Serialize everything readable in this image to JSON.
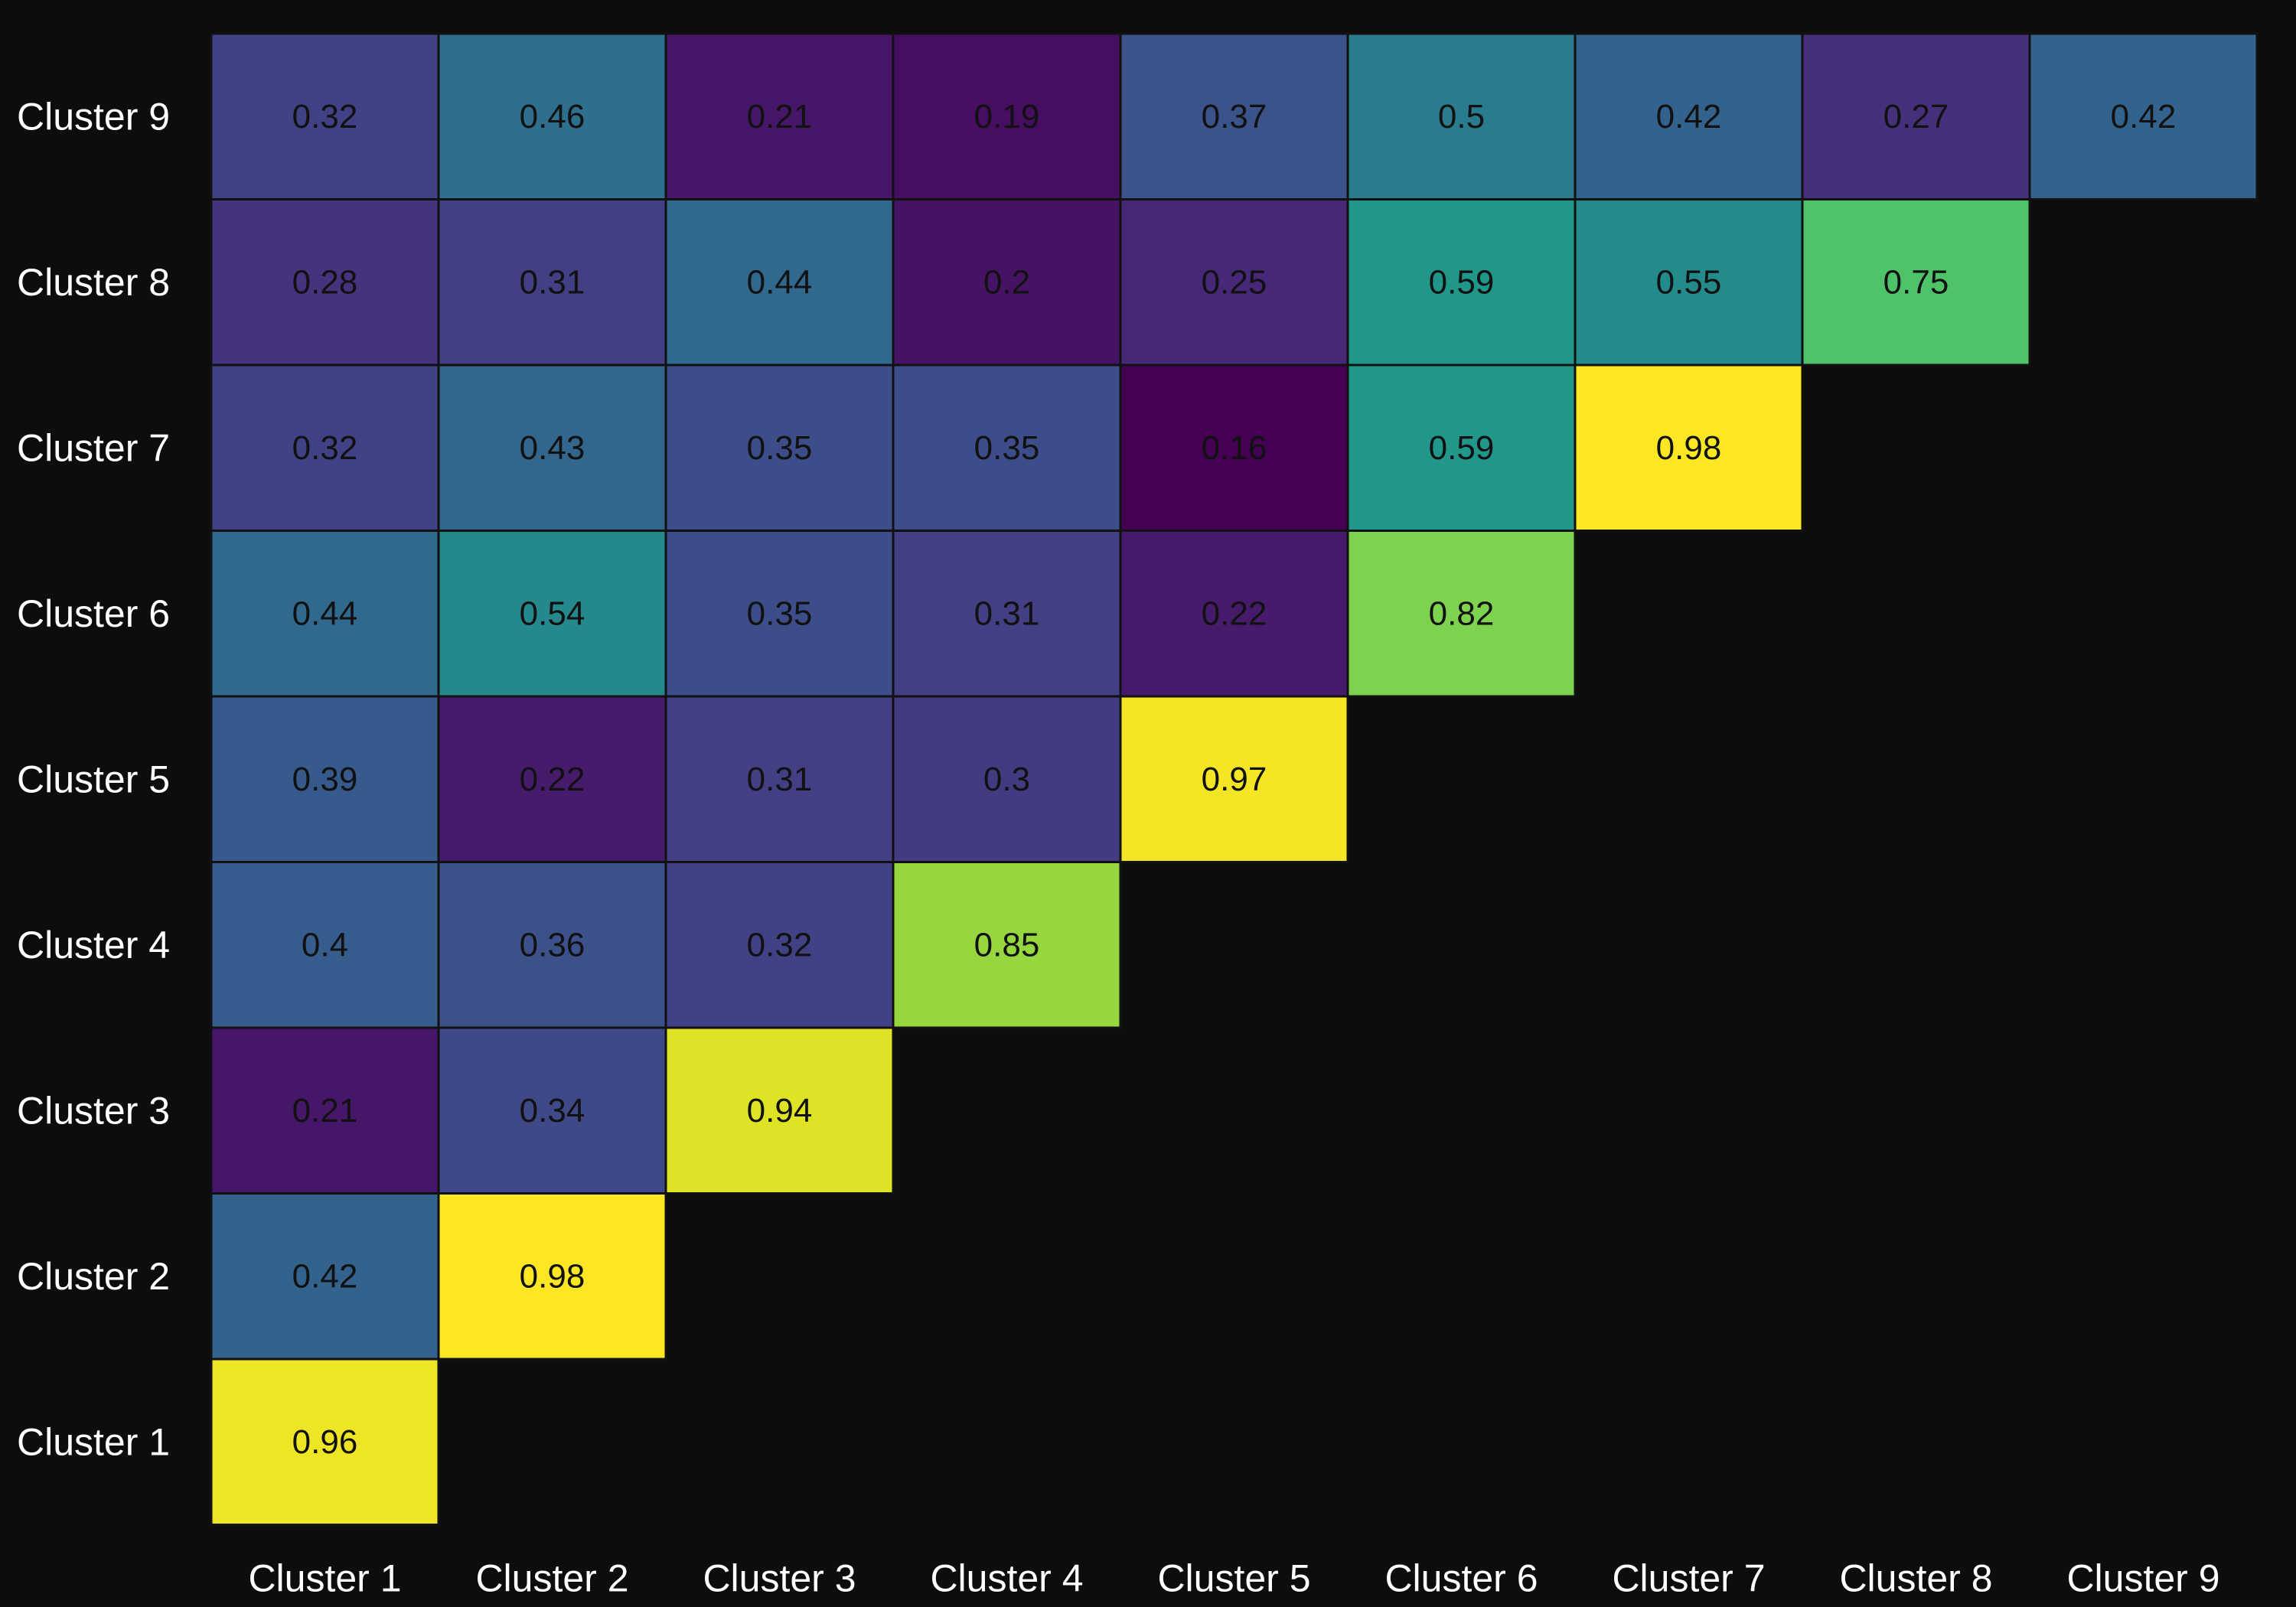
{
  "chart_data": {
    "type": "heatmap",
    "title": "",
    "xlabel": "",
    "ylabel": "",
    "x_categories": [
      "Cluster 1",
      "Cluster 2",
      "Cluster 3",
      "Cluster 4",
      "Cluster 5",
      "Cluster 6",
      "Cluster 7",
      "Cluster 8",
      "Cluster 9"
    ],
    "y_categories": [
      "Cluster 1",
      "Cluster 2",
      "Cluster 3",
      "Cluster 4",
      "Cluster 5",
      "Cluster 6",
      "Cluster 7",
      "Cluster 8",
      "Cluster 9"
    ],
    "colormap": "viridis",
    "value_range": [
      0.16,
      0.98
    ],
    "background_color": "#0d0d0d",
    "legend": "none",
    "grid": false,
    "cells": [
      {
        "x": "Cluster 1",
        "y": "Cluster 1",
        "value": 0.96
      },
      {
        "x": "Cluster 1",
        "y": "Cluster 2",
        "value": 0.42
      },
      {
        "x": "Cluster 2",
        "y": "Cluster 2",
        "value": 0.98
      },
      {
        "x": "Cluster 1",
        "y": "Cluster 3",
        "value": 0.21
      },
      {
        "x": "Cluster 2",
        "y": "Cluster 3",
        "value": 0.34
      },
      {
        "x": "Cluster 3",
        "y": "Cluster 3",
        "value": 0.94
      },
      {
        "x": "Cluster 1",
        "y": "Cluster 4",
        "value": 0.4
      },
      {
        "x": "Cluster 2",
        "y": "Cluster 4",
        "value": 0.36
      },
      {
        "x": "Cluster 3",
        "y": "Cluster 4",
        "value": 0.32
      },
      {
        "x": "Cluster 4",
        "y": "Cluster 4",
        "value": 0.85
      },
      {
        "x": "Cluster 1",
        "y": "Cluster 5",
        "value": 0.39
      },
      {
        "x": "Cluster 2",
        "y": "Cluster 5",
        "value": 0.22
      },
      {
        "x": "Cluster 3",
        "y": "Cluster 5",
        "value": 0.31
      },
      {
        "x": "Cluster 4",
        "y": "Cluster 5",
        "value": 0.3
      },
      {
        "x": "Cluster 5",
        "y": "Cluster 5",
        "value": 0.97
      },
      {
        "x": "Cluster 1",
        "y": "Cluster 6",
        "value": 0.44
      },
      {
        "x": "Cluster 2",
        "y": "Cluster 6",
        "value": 0.54
      },
      {
        "x": "Cluster 3",
        "y": "Cluster 6",
        "value": 0.35
      },
      {
        "x": "Cluster 4",
        "y": "Cluster 6",
        "value": 0.31
      },
      {
        "x": "Cluster 5",
        "y": "Cluster 6",
        "value": 0.22
      },
      {
        "x": "Cluster 6",
        "y": "Cluster 6",
        "value": 0.82
      },
      {
        "x": "Cluster 1",
        "y": "Cluster 7",
        "value": 0.32
      },
      {
        "x": "Cluster 2",
        "y": "Cluster 7",
        "value": 0.43
      },
      {
        "x": "Cluster 3",
        "y": "Cluster 7",
        "value": 0.35
      },
      {
        "x": "Cluster 4",
        "y": "Cluster 7",
        "value": 0.35
      },
      {
        "x": "Cluster 5",
        "y": "Cluster 7",
        "value": 0.16
      },
      {
        "x": "Cluster 6",
        "y": "Cluster 7",
        "value": 0.59
      },
      {
        "x": "Cluster 7",
        "y": "Cluster 7",
        "value": 0.98
      },
      {
        "x": "Cluster 1",
        "y": "Cluster 8",
        "value": 0.28
      },
      {
        "x": "Cluster 2",
        "y": "Cluster 8",
        "value": 0.31
      },
      {
        "x": "Cluster 3",
        "y": "Cluster 8",
        "value": 0.44
      },
      {
        "x": "Cluster 4",
        "y": "Cluster 8",
        "value": 0.2
      },
      {
        "x": "Cluster 5",
        "y": "Cluster 8",
        "value": 0.25
      },
      {
        "x": "Cluster 6",
        "y": "Cluster 8",
        "value": 0.59
      },
      {
        "x": "Cluster 7",
        "y": "Cluster 8",
        "value": 0.55
      },
      {
        "x": "Cluster 8",
        "y": "Cluster 8",
        "value": 0.75
      },
      {
        "x": "Cluster 1",
        "y": "Cluster 9",
        "value": 0.32
      },
      {
        "x": "Cluster 2",
        "y": "Cluster 9",
        "value": 0.46
      },
      {
        "x": "Cluster 3",
        "y": "Cluster 9",
        "value": 0.21
      },
      {
        "x": "Cluster 4",
        "y": "Cluster 9",
        "value": 0.19
      },
      {
        "x": "Cluster 5",
        "y": "Cluster 9",
        "value": 0.37
      },
      {
        "x": "Cluster 6",
        "y": "Cluster 9",
        "value": 0.5
      },
      {
        "x": "Cluster 7",
        "y": "Cluster 9",
        "value": 0.42
      },
      {
        "x": "Cluster 8",
        "y": "Cluster 9",
        "value": 0.27
      },
      {
        "x": "Cluster 9",
        "y": "Cluster 9",
        "value": 0.42
      }
    ]
  }
}
